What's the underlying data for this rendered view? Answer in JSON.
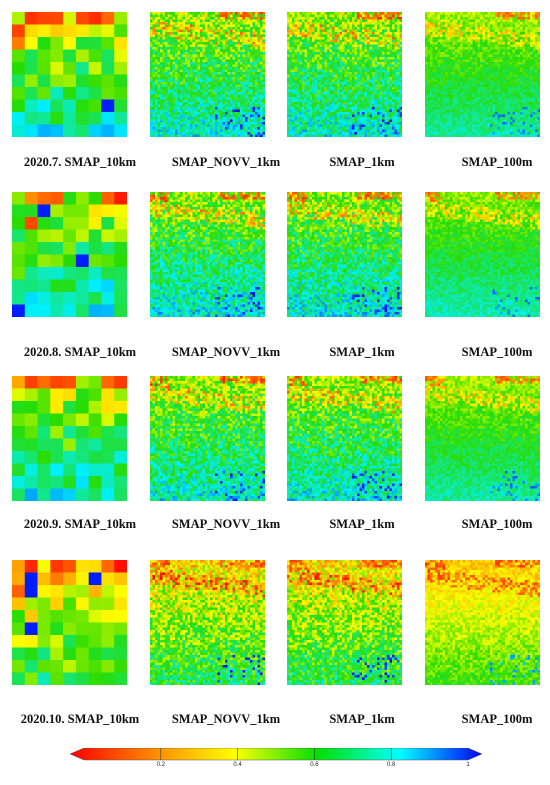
{
  "rows": [
    {
      "row_id": "2020.7",
      "captions": [
        "2020.7. SMAP_10km",
        "SMAP_NOVV_1km",
        "SMAP_1km",
        "SMAP_100m"
      ]
    },
    {
      "row_id": "2020.8",
      "captions": [
        "2020.8. SMAP_10km",
        "SMAP_NOVV_1km",
        "SMAP_1km",
        "SMAP_100m"
      ]
    },
    {
      "row_id": "2020.9",
      "captions": [
        "2020.9. SMAP_10km",
        "SMAP_NOVV_1km",
        "SMAP_1km",
        "SMAP_100m"
      ]
    },
    {
      "row_id": "2020.10",
      "captions": [
        "2020.10. SMAP_10km",
        "SMAP_NOVV_1km",
        "SMAP_1km",
        "SMAP_100m"
      ]
    }
  ],
  "colorbar": {
    "ticks": [
      "0.2",
      "0.4",
      "0.6",
      "0.8",
      "1"
    ],
    "tick_values": [
      0.2,
      0.4,
      0.6,
      0.8,
      1.0
    ],
    "range": [
      0,
      1
    ],
    "colors": [
      "#ff0000",
      "#ff8800",
      "#ffff00",
      "#00e000",
      "#00ffff",
      "#0000ff"
    ]
  }
}
